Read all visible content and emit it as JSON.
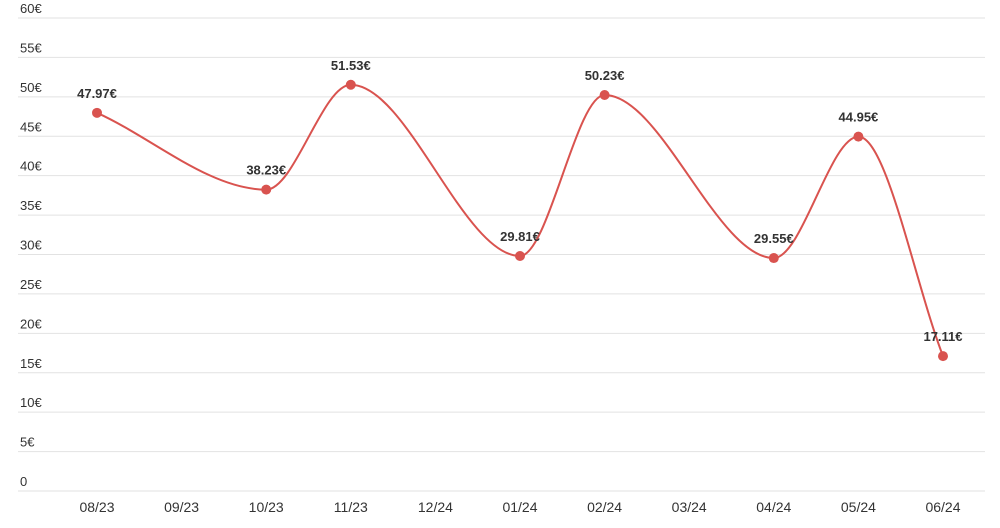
{
  "chart_data": {
    "type": "line",
    "categories": [
      "08/23",
      "09/23",
      "10/23",
      "11/23",
      "12/24",
      "01/24",
      "02/24",
      "03/24",
      "04/24",
      "05/24",
      "06/24"
    ],
    "series": [
      {
        "values": [
          47.97,
          null,
          38.23,
          51.53,
          null,
          29.81,
          50.23,
          null,
          29.55,
          44.95,
          17.11
        ],
        "data_labels": [
          "47.97€",
          "",
          "38.23€",
          "51.53€",
          "",
          "29.81€",
          "50.23€",
          "",
          "29.55€",
          "44.95€",
          "17.11€"
        ]
      }
    ],
    "y_ticks": [
      "0",
      "5€",
      "10€",
      "15€",
      "20€",
      "25€",
      "30€",
      "35€",
      "40€",
      "45€",
      "50€",
      "55€",
      "60€"
    ],
    "ylim": [
      0,
      60
    ],
    "ytick_step": 5,
    "grid": true,
    "legend": "none",
    "colors": {
      "line": "#d9534f",
      "grid": "#e2e2e2",
      "text": "#333333"
    }
  }
}
